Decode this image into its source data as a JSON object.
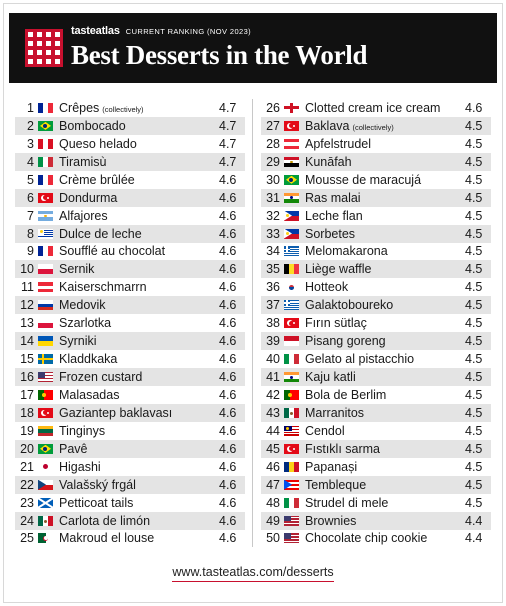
{
  "header": {
    "brand": "tasteatlas",
    "ranking": "CURRENT RANKING (NOV 2023)",
    "title": "Best Desserts in the World"
  },
  "left_column": [
    {
      "rank": "1",
      "name": "Crêpes",
      "note": "(collectively)",
      "score": "4.7",
      "flag": "france-flag-icon"
    },
    {
      "rank": "2",
      "name": "Bombocado",
      "note": "",
      "score": "4.7",
      "flag": "brazil-flag-icon"
    },
    {
      "rank": "3",
      "name": "Queso helado",
      "note": "",
      "score": "4.7",
      "flag": "peru-flag-icon"
    },
    {
      "rank": "4",
      "name": "Tiramisù",
      "note": "",
      "score": "4.7",
      "flag": "italy-flag-icon"
    },
    {
      "rank": "5",
      "name": "Crème brûlée",
      "note": "",
      "score": "4.6",
      "flag": "france-flag-icon"
    },
    {
      "rank": "6",
      "name": "Dondurma",
      "note": "",
      "score": "4.6",
      "flag": "turkey-flag-icon"
    },
    {
      "rank": "7",
      "name": "Alfajores",
      "note": "",
      "score": "4.6",
      "flag": "argentina-flag-icon"
    },
    {
      "rank": "8",
      "name": "Dulce de leche",
      "note": "",
      "score": "4.6",
      "flag": "uruguay-flag-icon"
    },
    {
      "rank": "9",
      "name": "Soufflé au chocolat",
      "note": "",
      "score": "4.6",
      "flag": "france-flag-icon"
    },
    {
      "rank": "10",
      "name": "Sernik",
      "note": "",
      "score": "4.6",
      "flag": "poland-flag-icon"
    },
    {
      "rank": "11",
      "name": "Kaiserschmarrn",
      "note": "",
      "score": "4.6",
      "flag": "austria-flag-icon"
    },
    {
      "rank": "12",
      "name": "Medovik",
      "note": "",
      "score": "4.6",
      "flag": "russia-flag-icon"
    },
    {
      "rank": "13",
      "name": "Szarlotka",
      "note": "",
      "score": "4.6",
      "flag": "poland-flag-icon"
    },
    {
      "rank": "14",
      "name": "Syrniki",
      "note": "",
      "score": "4.6",
      "flag": "ukraine-flag-icon"
    },
    {
      "rank": "15",
      "name": "Kladdkaka",
      "note": "",
      "score": "4.6",
      "flag": "sweden-flag-icon"
    },
    {
      "rank": "16",
      "name": "Frozen custard",
      "note": "",
      "score": "4.6",
      "flag": "usa-flag-icon"
    },
    {
      "rank": "17",
      "name": "Malasadas",
      "note": "",
      "score": "4.6",
      "flag": "portugal-flag-icon"
    },
    {
      "rank": "18",
      "name": "Gaziantep baklavası",
      "note": "",
      "score": "4.6",
      "flag": "turkey-flag-icon"
    },
    {
      "rank": "19",
      "name": "Tinginys",
      "note": "",
      "score": "4.6",
      "flag": "lithuania-flag-icon"
    },
    {
      "rank": "20",
      "name": "Pavê",
      "note": "",
      "score": "4.6",
      "flag": "brazil-flag-icon"
    },
    {
      "rank": "21",
      "name": "Higashi",
      "note": "",
      "score": "4.6",
      "flag": "japan-flag-icon"
    },
    {
      "rank": "22",
      "name": "Valašský frgál",
      "note": "",
      "score": "4.6",
      "flag": "czechia-flag-icon"
    },
    {
      "rank": "23",
      "name": "Petticoat tails",
      "note": "",
      "score": "4.6",
      "flag": "scotland-flag-icon"
    },
    {
      "rank": "24",
      "name": "Carlota de limón",
      "note": "",
      "score": "4.6",
      "flag": "mexico-flag-icon"
    },
    {
      "rank": "25",
      "name": "Makroud el louse",
      "note": "",
      "score": "4.6",
      "flag": "algeria-flag-icon"
    }
  ],
  "right_column": [
    {
      "rank": "26",
      "name": "Clotted cream ice cream",
      "note": "",
      "score": "4.6",
      "flag": "england-flag-icon"
    },
    {
      "rank": "27",
      "name": "Baklava",
      "note": "(collectively)",
      "score": "4.5",
      "flag": "turkey-flag-icon"
    },
    {
      "rank": "28",
      "name": "Apfelstrudel",
      "note": "",
      "score": "4.5",
      "flag": "austria-flag-icon"
    },
    {
      "rank": "29",
      "name": "Kunāfah",
      "note": "",
      "score": "4.5",
      "flag": "egypt-flag-icon"
    },
    {
      "rank": "30",
      "name": "Mousse de maracujá",
      "note": "",
      "score": "4.5",
      "flag": "brazil-flag-icon"
    },
    {
      "rank": "31",
      "name": "Ras malai",
      "note": "",
      "score": "4.5",
      "flag": "india-flag-icon"
    },
    {
      "rank": "32",
      "name": "Leche flan",
      "note": "",
      "score": "4.5",
      "flag": "philippines-flag-icon"
    },
    {
      "rank": "33",
      "name": "Sorbetes",
      "note": "",
      "score": "4.5",
      "flag": "philippines-flag-icon"
    },
    {
      "rank": "34",
      "name": "Melomakarona",
      "note": "",
      "score": "4.5",
      "flag": "greece-flag-icon"
    },
    {
      "rank": "35",
      "name": "Liège waffle",
      "note": "",
      "score": "4.5",
      "flag": "belgium-flag-icon"
    },
    {
      "rank": "36",
      "name": "Hotteok",
      "note": "",
      "score": "4.5",
      "flag": "south-korea-flag-icon"
    },
    {
      "rank": "37",
      "name": "Galaktoboureko",
      "note": "",
      "score": "4.5",
      "flag": "greece-flag-icon"
    },
    {
      "rank": "38",
      "name": "Fırın sütlaç",
      "note": "",
      "score": "4.5",
      "flag": "turkey-flag-icon"
    },
    {
      "rank": "39",
      "name": "Pisang goreng",
      "note": "",
      "score": "4.5",
      "flag": "indonesia-flag-icon"
    },
    {
      "rank": "40",
      "name": "Gelato al pistacchio",
      "note": "",
      "score": "4.5",
      "flag": "italy-flag-icon"
    },
    {
      "rank": "41",
      "name": "Kaju katli",
      "note": "",
      "score": "4.5",
      "flag": "india-flag-icon"
    },
    {
      "rank": "42",
      "name": "Bola de Berlim",
      "note": "",
      "score": "4.5",
      "flag": "portugal-flag-icon"
    },
    {
      "rank": "43",
      "name": "Marranitos",
      "note": "",
      "score": "4.5",
      "flag": "mexico-flag-icon"
    },
    {
      "rank": "44",
      "name": "Cendol",
      "note": "",
      "score": "4.5",
      "flag": "malaysia-flag-icon"
    },
    {
      "rank": "45",
      "name": "Fıstıklı sarma",
      "note": "",
      "score": "4.5",
      "flag": "turkey-flag-icon"
    },
    {
      "rank": "46",
      "name": "Papanași",
      "note": "",
      "score": "4.5",
      "flag": "romania-flag-icon"
    },
    {
      "rank": "47",
      "name": "Tembleque",
      "note": "",
      "score": "4.5",
      "flag": "puerto-rico-flag-icon"
    },
    {
      "rank": "48",
      "name": "Strudel di mele",
      "note": "",
      "score": "4.5",
      "flag": "italy-flag-icon"
    },
    {
      "rank": "49",
      "name": "Brownies",
      "note": "",
      "score": "4.4",
      "flag": "usa-flag-icon"
    },
    {
      "rank": "50",
      "name": "Chocolate chip cookie",
      "note": "",
      "score": "4.4",
      "flag": "usa-flag-icon"
    }
  ],
  "footer": {
    "url": "www.tasteatlas.com/desserts"
  },
  "colors": {
    "header_bg": "#111111",
    "accent_red": "#c8102e",
    "row_shade": "#e4e4e4"
  }
}
